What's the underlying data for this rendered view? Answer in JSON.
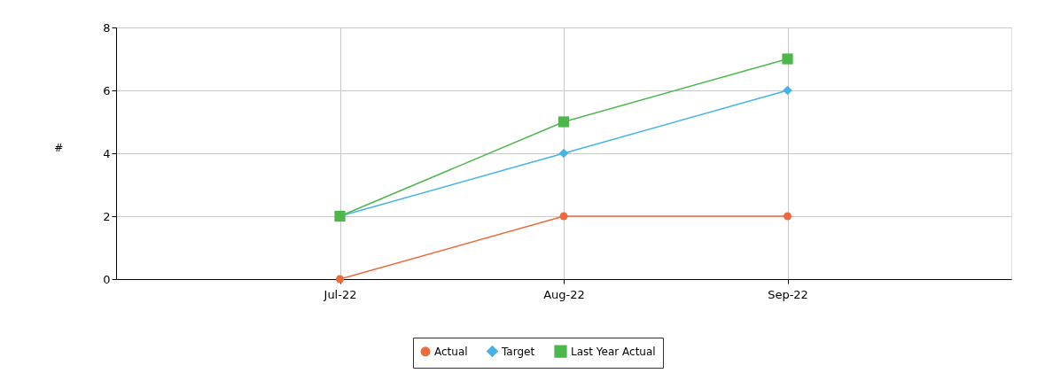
{
  "chart_data": {
    "type": "line",
    "ylabel": "#",
    "categories": [
      "Jul-22",
      "Aug-22",
      "Sep-22"
    ],
    "series": [
      {
        "name": "Actual",
        "color": "#ee6a3c",
        "values": [
          0,
          2,
          2
        ],
        "marker": "circle"
      },
      {
        "name": "Target",
        "color": "#45b3e6",
        "values": [
          2,
          4,
          6
        ],
        "marker": "diamond"
      },
      {
        "name": "Last Year Actual",
        "color": "#4cb84c",
        "values": [
          2,
          5,
          7
        ],
        "marker": "square"
      }
    ],
    "ylim": [
      0,
      8
    ],
    "yticks": [
      0,
      2,
      4,
      6,
      8
    ],
    "grid": true,
    "legend": "bottom",
    "line_style": "solid"
  }
}
